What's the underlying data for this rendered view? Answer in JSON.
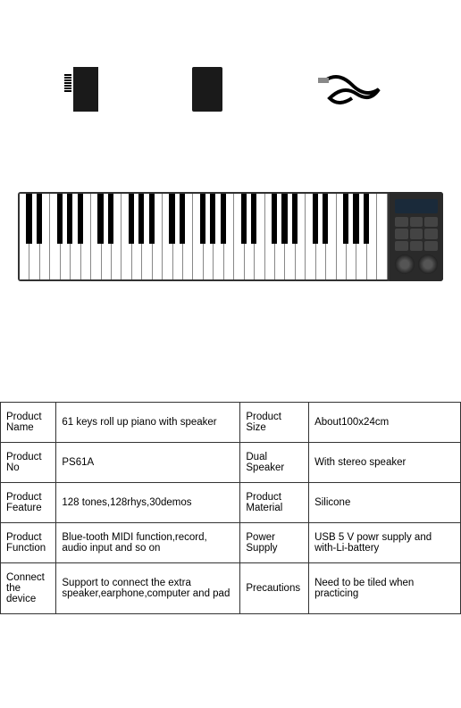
{
  "specs": {
    "rows": [
      {
        "l1": "Product Name",
        "v1": "61 keys roll up piano with speaker",
        "l2": "Product Size",
        "v2": "About100x24cm"
      },
      {
        "l1": "Product No",
        "v1": "PS61A",
        "l2": "Dual Speaker",
        "v2": "With stereo speaker"
      },
      {
        "l1": "Product Feature",
        "v1": "128 tones,128rhys,30demos",
        "l2": "Product Material",
        "v2": "Silicone"
      },
      {
        "l1": "Product Function",
        "v1": "Blue-tooth MIDI function,record, audio input and so on",
        "l2": "Power Supply",
        "v2": "USB 5 V powr supply and with-Li-battery"
      },
      {
        "l1": "Connect the device",
        "v1": "Support to connect the extra speaker,earphone,computer and pad",
        "l2": "Precautions",
        "v2": "Need to be tiled when practicing"
      }
    ]
  },
  "piano": {
    "white_key_count": 36,
    "black_key_pattern": [
      1,
      1,
      0,
      1,
      1,
      1,
      0
    ],
    "colors": {
      "body": "#2a2a2a",
      "white_key": "#ffffff",
      "black_key": "#000000",
      "key_border": "#888888"
    }
  },
  "accessories": {
    "manual": "manual-booklet",
    "battery": "battery-pack",
    "cable": "usb-cable"
  },
  "table_style": {
    "border_color": "#333333",
    "font_size": 11.5,
    "cell_padding": 10
  }
}
